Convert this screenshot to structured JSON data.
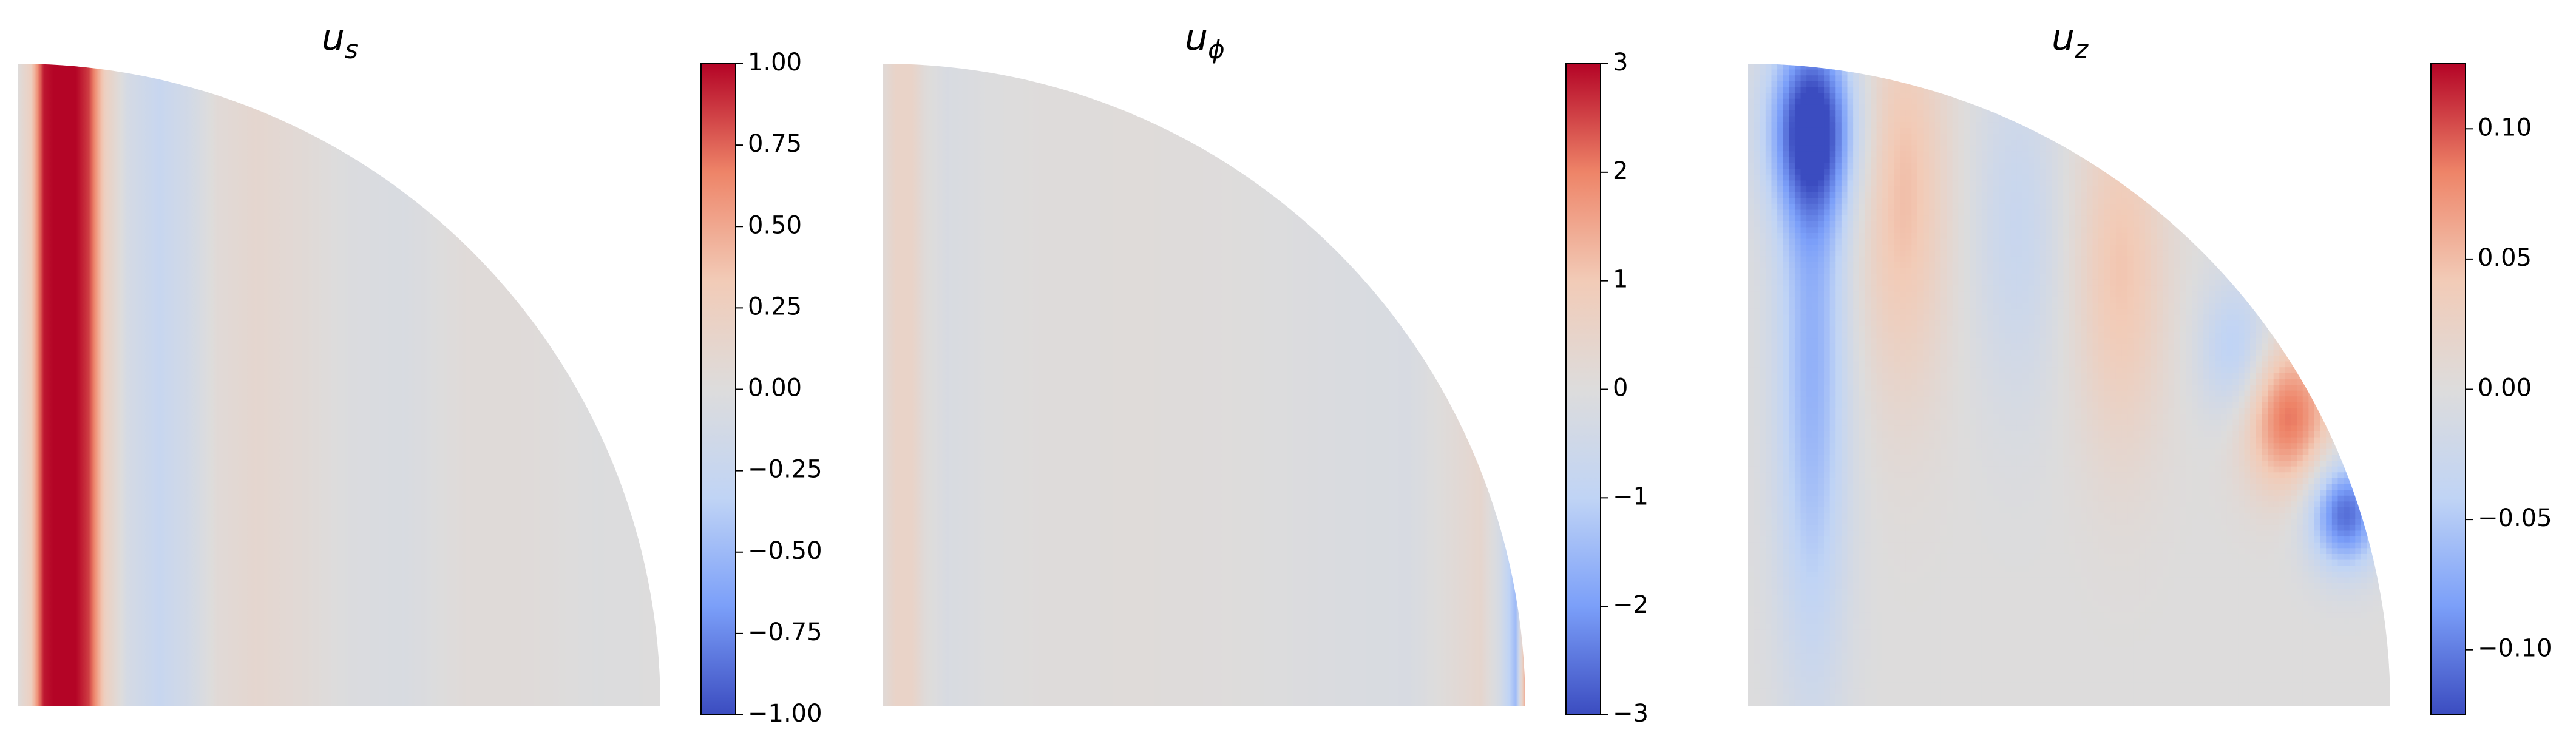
{
  "figure": {
    "background": "#ffffff",
    "colormap": "coolwarm",
    "colormap_stops": [
      "#3b4cc0",
      "#7b9ff9",
      "#c0d4f5",
      "#dddcdc",
      "#f2cbb7",
      "#ee8468",
      "#b40426"
    ]
  },
  "chart_data": [
    {
      "type": "heatmap",
      "title": "u_s",
      "title_base": "u",
      "title_sub": "s",
      "domain_shape": "quarter disk",
      "radial_profile": [
        {
          "s": 0.0,
          "v": 0.02
        },
        {
          "s": 0.02,
          "v": 0.25
        },
        {
          "s": 0.04,
          "v": 0.95
        },
        {
          "s": 0.055,
          "v": 1.0
        },
        {
          "s": 0.09,
          "v": 1.0
        },
        {
          "s": 0.11,
          "v": 0.85
        },
        {
          "s": 0.135,
          "v": 0.25
        },
        {
          "s": 0.17,
          "v": -0.1
        },
        {
          "s": 0.22,
          "v": -0.25
        },
        {
          "s": 0.27,
          "v": -0.12
        },
        {
          "s": 0.31,
          "v": 0.05
        },
        {
          "s": 0.37,
          "v": 0.12
        },
        {
          "s": 0.45,
          "v": 0.05
        },
        {
          "s": 0.52,
          "v": -0.03
        },
        {
          "s": 0.6,
          "v": -0.06
        },
        {
          "s": 0.7,
          "v": 0.04
        },
        {
          "s": 0.8,
          "v": 0.03
        },
        {
          "s": 0.9,
          "v": -0.02
        },
        {
          "s": 1.0,
          "v": 0.0
        }
      ],
      "vmin": -1.0,
      "vmax": 1.0,
      "colorbar_ticks": [
        1.0,
        0.75,
        0.5,
        0.25,
        0.0,
        -0.25,
        -0.5,
        -0.75,
        -1.0
      ],
      "colorbar_tick_labels": [
        "1.00",
        "0.75",
        "0.50",
        "0.25",
        "0.00",
        "−0.25",
        "−0.50",
        "−0.75",
        "−1.00"
      ]
    },
    {
      "type": "heatmap",
      "title": "u_ϕ",
      "title_base": "u",
      "title_sub": "ϕ",
      "domain_shape": "quarter disk",
      "radial_profile": [
        {
          "s": 0.0,
          "v": 0.15
        },
        {
          "s": 0.02,
          "v": 0.55
        },
        {
          "s": 0.045,
          "v": 0.55
        },
        {
          "s": 0.065,
          "v": 0.1
        },
        {
          "s": 0.1,
          "v": -0.2
        },
        {
          "s": 0.16,
          "v": -0.05
        },
        {
          "s": 0.25,
          "v": 0.05
        },
        {
          "s": 0.4,
          "v": 0.08
        },
        {
          "s": 0.55,
          "v": 0.02
        },
        {
          "s": 0.7,
          "v": -0.12
        },
        {
          "s": 0.82,
          "v": -0.2
        },
        {
          "s": 0.88,
          "v": 0.1
        },
        {
          "s": 0.93,
          "v": 0.4
        },
        {
          "s": 0.96,
          "v": -0.3
        },
        {
          "s": 0.985,
          "v": -1.5
        },
        {
          "s": 1.0,
          "v": 1.5
        }
      ],
      "vmin": -3.0,
      "vmax": 3.0,
      "colorbar_ticks": [
        3,
        2,
        1,
        0,
        -1,
        -2,
        -3
      ],
      "colorbar_tick_labels": [
        "3",
        "2",
        "1",
        "0",
        "−1",
        "−2",
        "−3"
      ]
    },
    {
      "type": "heatmap",
      "title": "u_z",
      "title_base": "u",
      "title_sub": "z",
      "domain_shape": "quarter disk",
      "field_features": [
        {
          "s": 0.1,
          "z": 0.9,
          "ws": 0.05,
          "wz": 0.1,
          "v": -0.11
        },
        {
          "s": 0.1,
          "z": 0.55,
          "ws": 0.04,
          "wz": 0.35,
          "v": -0.07
        },
        {
          "s": 0.24,
          "z": 0.8,
          "ws": 0.05,
          "wz": 0.22,
          "v": 0.05
        },
        {
          "s": 0.42,
          "z": 0.75,
          "ws": 0.05,
          "wz": 0.2,
          "v": -0.03
        },
        {
          "s": 0.58,
          "z": 0.68,
          "ws": 0.05,
          "wz": 0.2,
          "v": 0.045
        },
        {
          "s": 0.76,
          "z": 0.55,
          "ws": 0.04,
          "wz": 0.08,
          "v": -0.05
        },
        {
          "s": 0.84,
          "z": 0.45,
          "ws": 0.05,
          "wz": 0.08,
          "v": 0.09
        },
        {
          "s": 0.93,
          "z": 0.3,
          "ws": 0.04,
          "wz": 0.06,
          "v": -0.11
        }
      ],
      "vmin": -0.125,
      "vmax": 0.125,
      "colorbar_ticks": [
        0.1,
        0.05,
        0.0,
        -0.05,
        -0.1
      ],
      "colorbar_tick_labels": [
        "0.10",
        "0.05",
        "0.00",
        "−0.05",
        "−0.10"
      ]
    }
  ]
}
